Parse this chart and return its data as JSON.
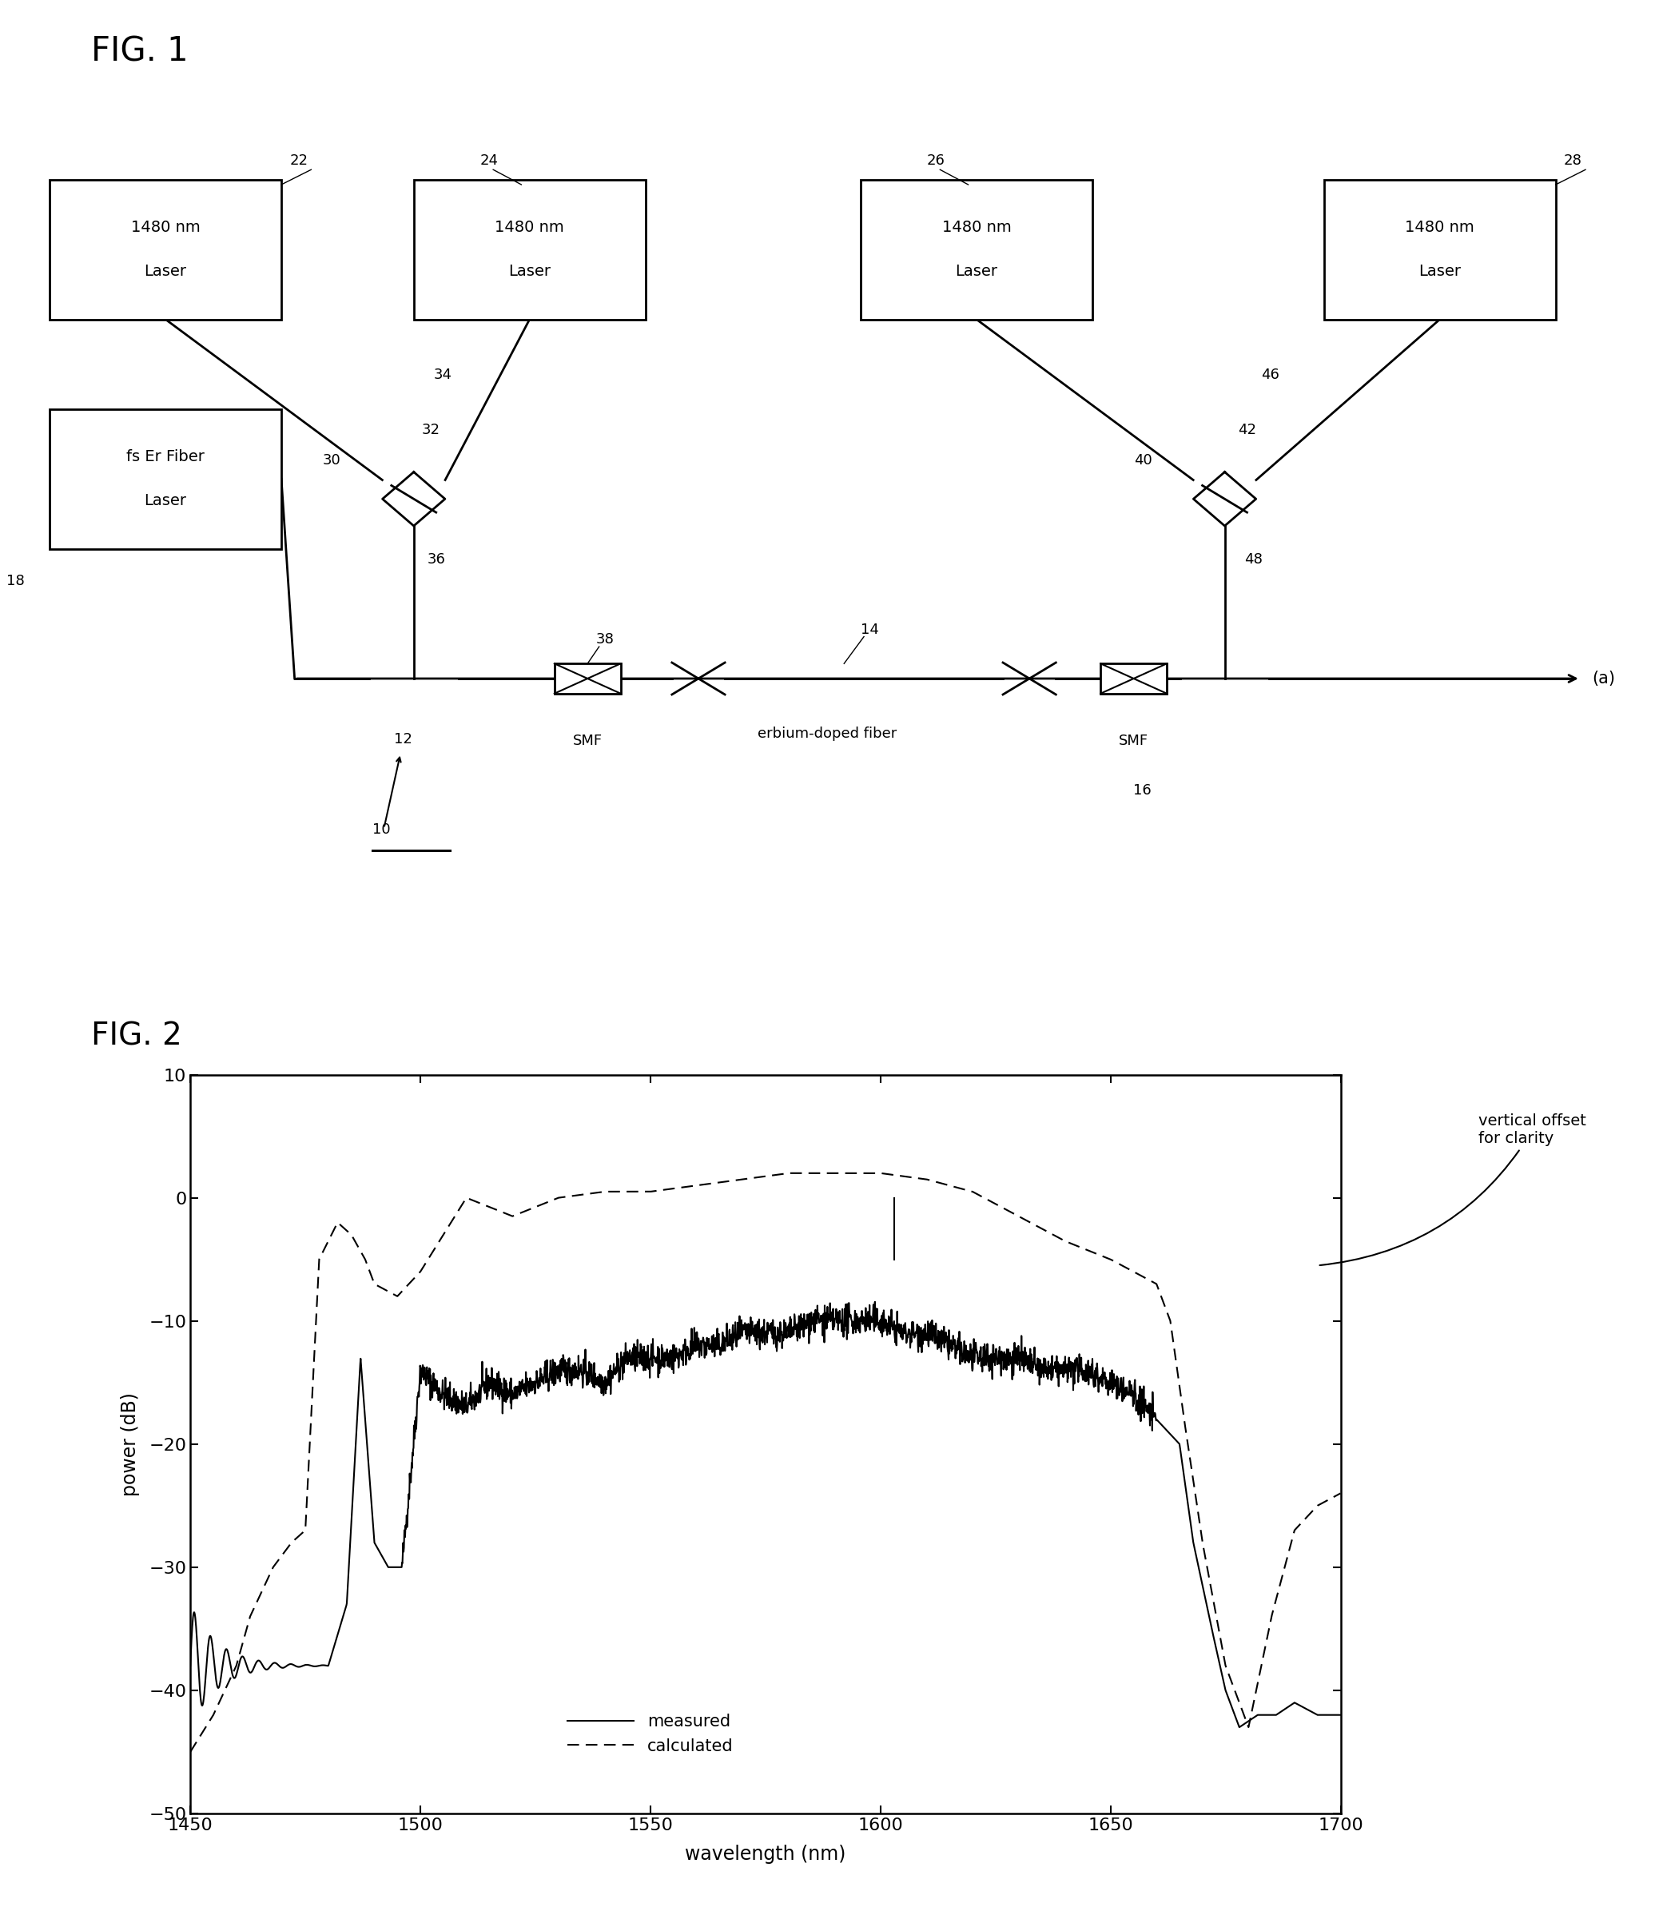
{
  "fig1_title": "FIG. 1",
  "fig2_title": "FIG. 2",
  "background_color": "#ffffff",
  "graph_xlim": [
    1450,
    1700
  ],
  "graph_ylim": [
    -50,
    10
  ],
  "graph_xticks": [
    1450,
    1500,
    1550,
    1600,
    1650,
    1700
  ],
  "graph_yticks": [
    -50,
    -40,
    -30,
    -20,
    -10,
    0,
    10
  ],
  "xlabel": "wavelength (nm)",
  "ylabel": "power (dB)",
  "annotation_text": "vertical offset\nfor clarity",
  "legend_measured": "measured",
  "legend_calculated": "calculated"
}
